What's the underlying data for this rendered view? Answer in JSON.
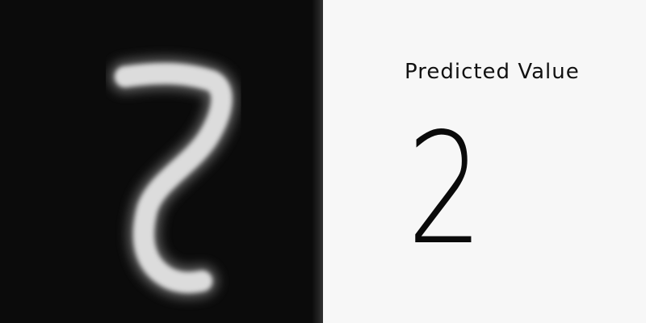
{
  "input_image": {
    "digit_icon": "handwritten-digit-image",
    "background_color": "#0b0b0b",
    "stroke_color": "#e6e6e6"
  },
  "result": {
    "title": "Predicted Value",
    "value": "2"
  }
}
